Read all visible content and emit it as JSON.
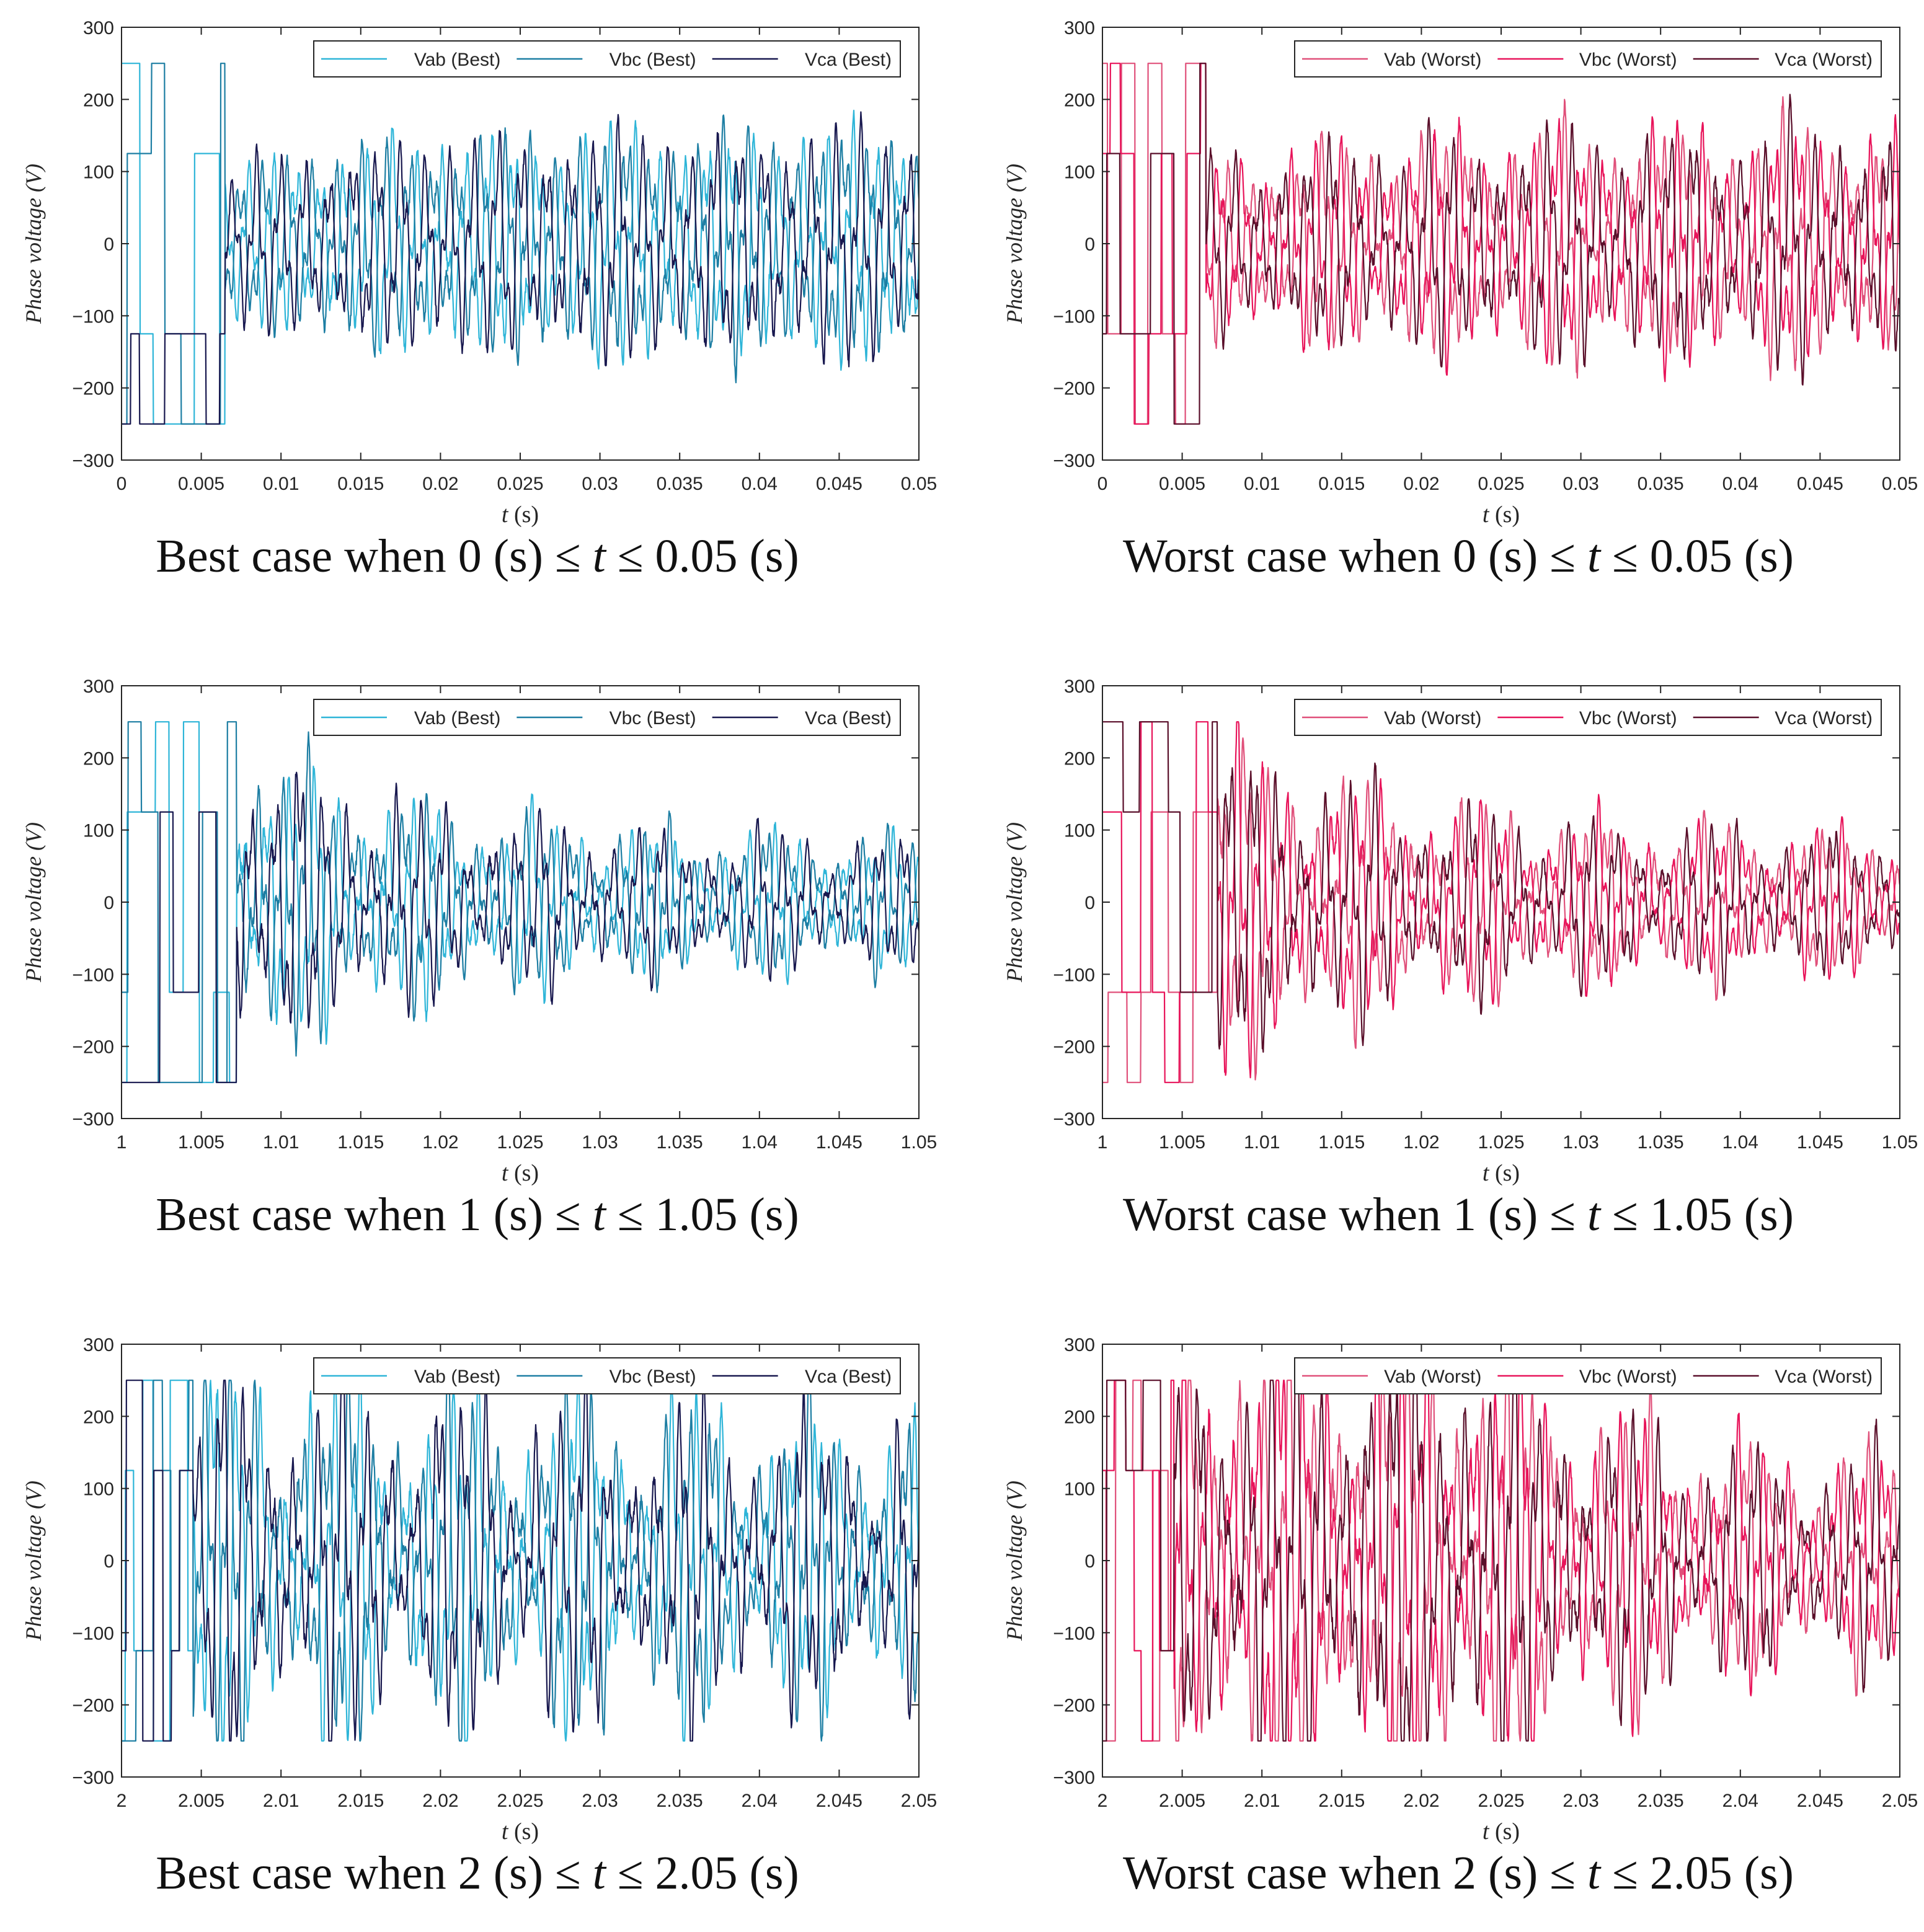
{
  "figure": {
    "ylabel": "Phase voltage (V)",
    "xlabel_var": "t",
    "xlabel_unit": "(s)"
  },
  "chart_data": [
    {
      "type": "line",
      "case": "best",
      "caption": {
        "prefix": "Best case when 0 (s) ≤ ",
        "var": "t",
        "suffix": " ≤ 0.05 (s)"
      },
      "xlim": [
        0,
        0.05
      ],
      "ylim": [
        -300,
        300
      ],
      "xticks": [
        "0",
        "0.005",
        "0.01",
        "0.015",
        "0.02",
        "0.025",
        "0.03",
        "0.035",
        "0.04",
        "0.045",
        "0.05"
      ],
      "yticks": [
        "300",
        "200",
        "100",
        "0",
        "−100",
        "−200",
        "−300"
      ],
      "legend": [
        "Vab (Best)",
        "Vbc (Best)",
        "Vca (Best)"
      ],
      "colors": [
        "#2eb5d8",
        "#1d7ea3",
        "#18184f"
      ],
      "transient_end": 0.0065,
      "amplitude_final": 140,
      "amplitude_start": 90,
      "settle": 0.008,
      "clip": 250,
      "chaos": 0.15,
      "seed": 11,
      "dense_until": 0,
      "series_notes": [
        "square-wave ±250 V start, settles to ≈ ±140 V oscillation"
      ]
    },
    {
      "type": "line",
      "case": "worst",
      "caption": {
        "prefix": "Worst case when 0 (s) ≤ ",
        "var": "t",
        "suffix": " ≤ 0.05 (s)"
      },
      "xlim": [
        0,
        0.05
      ],
      "ylim": [
        -300,
        300
      ],
      "xticks": [
        "0",
        "0.005",
        "0.01",
        "0.015",
        "0.02",
        "0.025",
        "0.03",
        "0.035",
        "0.04",
        "0.045",
        "0.05"
      ],
      "yticks": [
        "300",
        "200",
        "100",
        "0",
        "−100",
        "−200",
        "−300"
      ],
      "legend": [
        "Vab (Worst)",
        "Vbc (Worst)",
        "Vca (Worst)"
      ],
      "colors": [
        "#e0507a",
        "#e8145a",
        "#5a0f2a"
      ],
      "transient_end": 0.0065,
      "amplitude_final": 140,
      "amplitude_start": 100,
      "settle": 0.012,
      "clip": 250,
      "chaos": 0.25,
      "seed": 23,
      "dense_until": 0,
      "series_notes": [
        "square-wave ±250 V start, settles to ≈ ±140 V oscillation"
      ]
    },
    {
      "type": "line",
      "case": "best",
      "caption": {
        "prefix": "Best case when 1 (s) ≤ ",
        "var": "t",
        "suffix": " ≤ 1.05 (s)"
      },
      "xlim": [
        1,
        1.05
      ],
      "ylim": [
        -300,
        300
      ],
      "xticks": [
        "1",
        "1.005",
        "1.01",
        "1.015",
        "1.02",
        "1.025",
        "1.03",
        "1.035",
        "1.04",
        "1.045",
        "1.05"
      ],
      "yticks": [
        "300",
        "200",
        "100",
        "0",
        "−100",
        "−200",
        "−300"
      ],
      "legend": [
        "Vab (Best)",
        "Vbc (Best)",
        "Vca (Best)"
      ],
      "colors": [
        "#2eb5d8",
        "#1d7ea3",
        "#18184f"
      ],
      "transient_end": 1.0072,
      "amplitude_final": 70,
      "amplitude_start": 180,
      "settle": 0.012,
      "clip": 250,
      "chaos": 0.35,
      "seed": 37,
      "dense_until": 0,
      "series_notes": [
        "square-wave ±250 V start, settles to ≈ ±70 V oscillation"
      ]
    },
    {
      "type": "line",
      "case": "worst",
      "caption": {
        "prefix": "Worst case when 1 (s) ≤ ",
        "var": "t",
        "suffix": " ≤ 1.05 (s)"
      },
      "xlim": [
        1,
        1.05
      ],
      "ylim": [
        -300,
        300
      ],
      "xticks": [
        "1",
        "1.005",
        "1.01",
        "1.015",
        "1.02",
        "1.025",
        "1.03",
        "1.035",
        "1.04",
        "1.045",
        "1.05"
      ],
      "yticks": [
        "300",
        "200",
        "100",
        "0",
        "−100",
        "−200",
        "−300"
      ],
      "legend": [
        "Vab (Worst)",
        "Vbc (Worst)",
        "Vca (Worst)"
      ],
      "colors": [
        "#e0507a",
        "#e8145a",
        "#5a0f2a"
      ],
      "transient_end": 1.0072,
      "amplitude_final": 75,
      "amplitude_start": 190,
      "settle": 0.012,
      "clip": 250,
      "chaos": 0.35,
      "seed": 41,
      "dense_until": 0,
      "series_notes": [
        "square-wave ±250 V start, settles to ≈ ±75 V oscillation"
      ]
    },
    {
      "type": "line",
      "case": "best",
      "caption": {
        "prefix": "Best case when 2 (s) ≤ ",
        "var": "t",
        "suffix": " ≤ 2.05 (s)"
      },
      "xlim": [
        2,
        2.05
      ],
      "ylim": [
        -300,
        300
      ],
      "xticks": [
        "2",
        "2.005",
        "2.01",
        "2.015",
        "2.02",
        "2.025",
        "2.03",
        "2.035",
        "2.04",
        "2.045",
        "2.05"
      ],
      "yticks": [
        "300",
        "200",
        "100",
        "0",
        "−100",
        "−200",
        "−300"
      ],
      "legend": [
        "Vab (Best)",
        "Vbc (Best)",
        "Vca (Best)"
      ],
      "colors": [
        "#2eb5d8",
        "#1d7ea3",
        "#18184f"
      ],
      "transient_end": 2.0045,
      "amplitude_final": 130,
      "amplitude_start": 210,
      "settle": 0.04,
      "clip": 250,
      "chaos": 0.45,
      "seed": 53,
      "dense_until": 0,
      "series_notes": [
        "square-wave ±250 V start, sustained ≈ ±150–220 V oscillation"
      ]
    },
    {
      "type": "line",
      "case": "worst",
      "caption": {
        "prefix": "Worst case when 2 (s) ≤ ",
        "var": "t",
        "suffix": " ≤ 2.05 (s)"
      },
      "xlim": [
        2,
        2.05
      ],
      "ylim": [
        -300,
        300
      ],
      "xticks": [
        "2",
        "2.005",
        "2.01",
        "2.015",
        "2.02",
        "2.025",
        "2.03",
        "2.035",
        "2.04",
        "2.045",
        "2.05"
      ],
      "yticks": [
        "300",
        "200",
        "100",
        "0",
        "−100",
        "−200",
        "−300"
      ],
      "legend": [
        "Vab (Worst)",
        "Vbc (Worst)",
        "Vca (Worst)"
      ],
      "colors": [
        "#e0507a",
        "#e8145a",
        "#5a0f2a"
      ],
      "transient_end": 2.0045,
      "amplitude_final": 100,
      "amplitude_start": 250,
      "settle": 0.01,
      "clip": 250,
      "chaos": 0.4,
      "seed": 67,
      "dense_until": 2.0235,
      "series_notes": [
        "±250 V saturated oscillation until ≈ 2.0235 s, then ≈ ±100–150 V"
      ]
    }
  ]
}
